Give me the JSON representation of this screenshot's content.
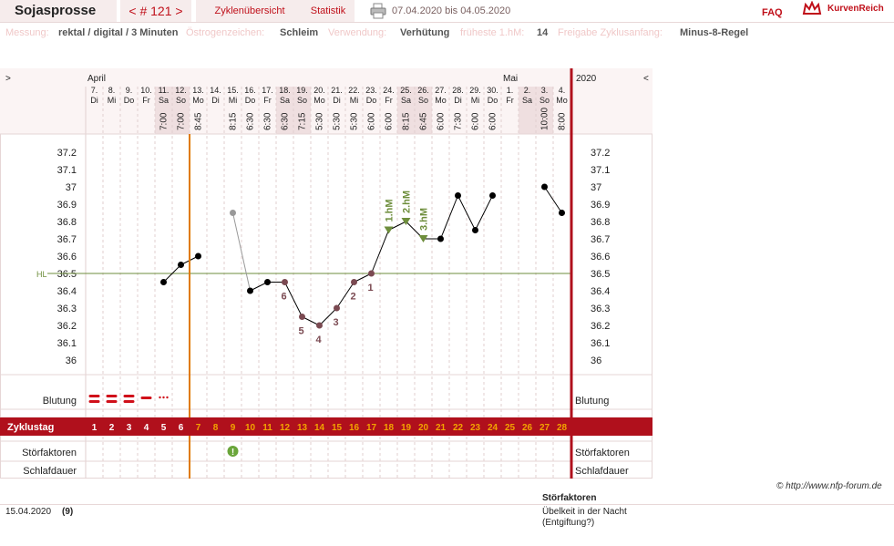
{
  "header": {
    "title": "Sojasprosse",
    "cycle_nav": "< # 121 >",
    "tab_overview": "Zyklenübersicht",
    "tab_stats": "Statistik",
    "date_range": "07.04.2020 bis 04.05.2020",
    "faq": "FAQ",
    "brand": "KurvenReich"
  },
  "meta": {
    "measure_key": "Messung:",
    "measure_val": "rektal / digital / 3 Minuten",
    "estrogen_key": "Östrogenzeichen:",
    "estrogen_val": "Schleim",
    "usage_key": "Verwendung:",
    "usage_val": "Verhütung",
    "first_hm_key": "früheste 1.hM:",
    "first_hm_val": "14",
    "release_key": "Freigabe Zyklusanfang:",
    "release_val": "Minus-8-Regel"
  },
  "chart_data": {
    "type": "line",
    "month_labels": [
      {
        "label": "April",
        "day_index": 0
      },
      {
        "label": "Mai",
        "day_index": 24
      }
    ],
    "year_label": "2020",
    "nav_left": ">",
    "nav_right": "<",
    "days": [
      {
        "d": "7.",
        "w": "Di",
        "time": "",
        "cycle": 1,
        "weekend": false
      },
      {
        "d": "8.",
        "w": "Mi",
        "time": "",
        "cycle": 2,
        "weekend": false
      },
      {
        "d": "9.",
        "w": "Do",
        "time": "",
        "cycle": 3,
        "weekend": false
      },
      {
        "d": "10.",
        "w": "Fr",
        "time": "",
        "cycle": 4,
        "weekend": false
      },
      {
        "d": "11.",
        "w": "Sa",
        "time": "7:00",
        "cycle": 5,
        "weekend": true
      },
      {
        "d": "12.",
        "w": "So",
        "time": "7:00",
        "cycle": 6,
        "weekend": true
      },
      {
        "d": "13.",
        "w": "Mo",
        "time": "8:45",
        "cycle": 7,
        "weekend": false
      },
      {
        "d": "14.",
        "w": "Di",
        "time": "",
        "cycle": 8,
        "weekend": false
      },
      {
        "d": "15.",
        "w": "Mi",
        "time": "8:15",
        "cycle": 9,
        "weekend": false
      },
      {
        "d": "16.",
        "w": "Do",
        "time": "6:30",
        "cycle": 10,
        "weekend": false
      },
      {
        "d": "17.",
        "w": "Fr",
        "time": "6:30",
        "cycle": 11,
        "weekend": false
      },
      {
        "d": "18.",
        "w": "Sa",
        "time": "6:30",
        "cycle": 12,
        "weekend": true
      },
      {
        "d": "19.",
        "w": "So",
        "time": "7:15",
        "cycle": 13,
        "weekend": true
      },
      {
        "d": "20.",
        "w": "Mo",
        "time": "5:30",
        "cycle": 14,
        "weekend": false
      },
      {
        "d": "21.",
        "w": "Di",
        "time": "5:30",
        "cycle": 15,
        "weekend": false
      },
      {
        "d": "22.",
        "w": "Mi",
        "time": "5:30",
        "cycle": 16,
        "weekend": false
      },
      {
        "d": "23.",
        "w": "Do",
        "time": "6:00",
        "cycle": 17,
        "weekend": false
      },
      {
        "d": "24.",
        "w": "Fr",
        "time": "6:00",
        "cycle": 18,
        "weekend": false
      },
      {
        "d": "25.",
        "w": "Sa",
        "time": "8:15",
        "cycle": 19,
        "weekend": true
      },
      {
        "d": "26.",
        "w": "So",
        "time": "6:45",
        "cycle": 20,
        "weekend": true
      },
      {
        "d": "27.",
        "w": "Mo",
        "time": "6:00",
        "cycle": 21,
        "weekend": false
      },
      {
        "d": "28.",
        "w": "Di",
        "time": "7:30",
        "cycle": 22,
        "weekend": false
      },
      {
        "d": "29.",
        "w": "Mi",
        "time": "6:00",
        "cycle": 23,
        "weekend": false
      },
      {
        "d": "30.",
        "w": "Do",
        "time": "6:00",
        "cycle": 24,
        "weekend": false
      },
      {
        "d": "1.",
        "w": "Fr",
        "time": "",
        "cycle": 25,
        "weekend": false
      },
      {
        "d": "2.",
        "w": "Sa",
        "time": "",
        "cycle": 26,
        "weekend": true
      },
      {
        "d": "3.",
        "w": "So",
        "time": "10:00",
        "cycle": 27,
        "weekend": true
      },
      {
        "d": "4.",
        "w": "Mo",
        "time": "8:00",
        "cycle": 28,
        "weekend": false
      }
    ],
    "ylim": [
      36.0,
      37.2
    ],
    "yticks": [
      "37.2",
      "37.1",
      "37",
      "36.9",
      "36.8",
      "36.7",
      "36.6",
      "36.5",
      "36.4",
      "36.3",
      "36.2",
      "36.1",
      "36"
    ],
    "hl_label": "HL",
    "hl_value": 36.5,
    "temps": [
      null,
      null,
      null,
      null,
      36.45,
      36.55,
      36.6,
      null,
      36.85,
      36.4,
      36.45,
      36.45,
      36.25,
      36.2,
      36.3,
      36.45,
      36.5,
      36.75,
      36.8,
      36.7,
      36.7,
      36.95,
      36.75,
      36.95,
      null,
      null,
      37.0,
      36.85
    ],
    "excluded_days": [
      8
    ],
    "low_labels": [
      {
        "day": 16,
        "text": "1"
      },
      {
        "day": 15,
        "text": "2"
      },
      {
        "day": 14,
        "text": "3"
      },
      {
        "day": 13,
        "text": "4"
      },
      {
        "day": 12,
        "text": "5"
      },
      {
        "day": 11,
        "text": "6"
      }
    ],
    "high_markers": [
      {
        "day": 17,
        "text": "1.hM"
      },
      {
        "day": 18,
        "text": "2.hM"
      },
      {
        "day": 19,
        "text": "3.hM"
      }
    ],
    "cover_start_day": 17,
    "cover_end_day": 19,
    "rows": {
      "bleeding": "Blutung",
      "cycleday": "Zyklustag",
      "disturb": "Störfaktoren",
      "sleep": "Schlafdauer"
    },
    "bleeding": [
      "heavy",
      "heavy",
      "heavy",
      "medium",
      "spotting"
    ],
    "disturb_days": [
      8
    ],
    "release_after_day": 5,
    "colors": {
      "accent": "#b0101c",
      "orange": "#e07a00",
      "green": "#6e8e3c",
      "low": "#7b4a52"
    }
  },
  "footer": {
    "date": "15.04.2020",
    "num": "(9)",
    "stf_title": "Störfaktoren",
    "stf_text": "Übelkeit in der Nacht (Entgiftung?)",
    "copyright": "© http://www.nfp-forum.de"
  }
}
